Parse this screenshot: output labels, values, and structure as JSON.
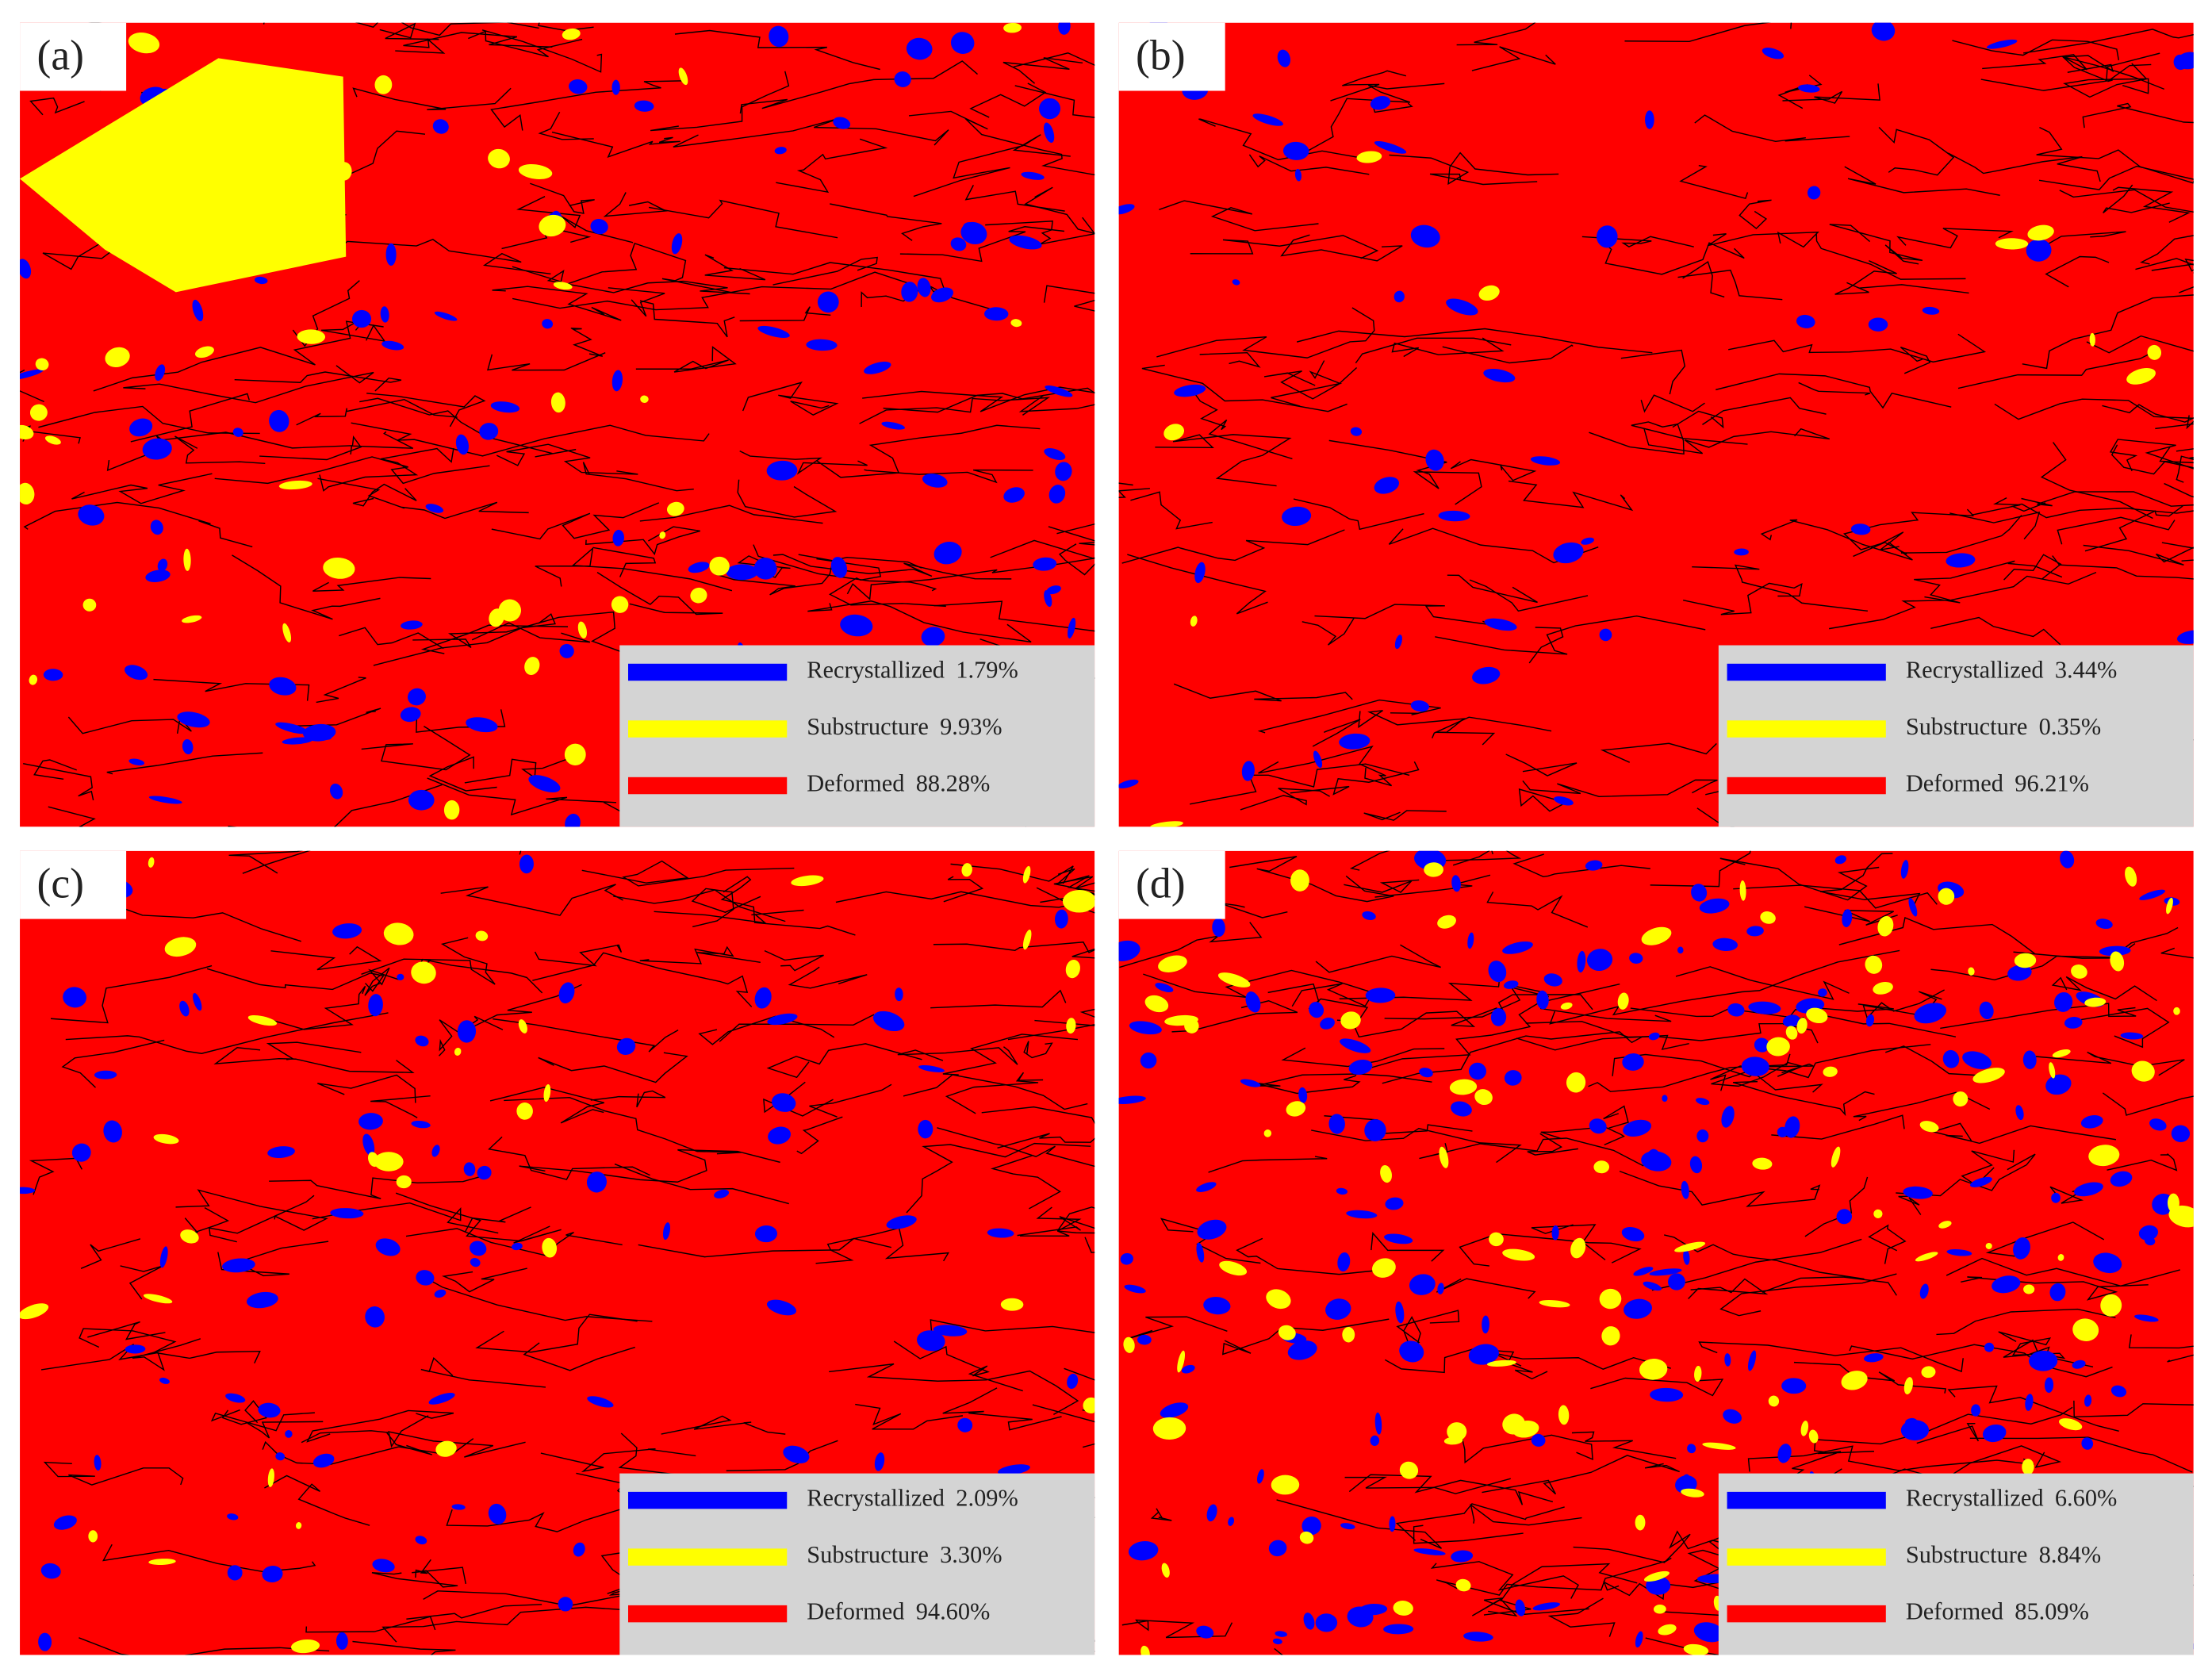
{
  "panels": [
    {
      "label": "(a)",
      "legend": [
        {
          "name": "Recrystallized",
          "value": "1.79%"
        },
        {
          "name": "Substructure",
          "value": "9.93%"
        },
        {
          "name": "Deformed",
          "value": "88.28%"
        }
      ]
    },
    {
      "label": "(b)",
      "legend": [
        {
          "name": "Recrystallized",
          "value": "3.44%"
        },
        {
          "name": "Substructure",
          "value": "0.35%"
        },
        {
          "name": "Deformed",
          "value": "96.21%"
        }
      ]
    },
    {
      "label": "(c)",
      "legend": [
        {
          "name": "Recrystallized",
          "value": "2.09%"
        },
        {
          "name": "Substructure",
          "value": "3.30%"
        },
        {
          "name": "Deformed",
          "value": "94.60%"
        }
      ]
    },
    {
      "label": "(d)",
      "legend": [
        {
          "name": "Recrystallized",
          "value": "6.60%"
        },
        {
          "name": "Substructure",
          "value": "8.84%"
        },
        {
          "name": "Deformed",
          "value": "85.09%"
        }
      ]
    }
  ]
}
